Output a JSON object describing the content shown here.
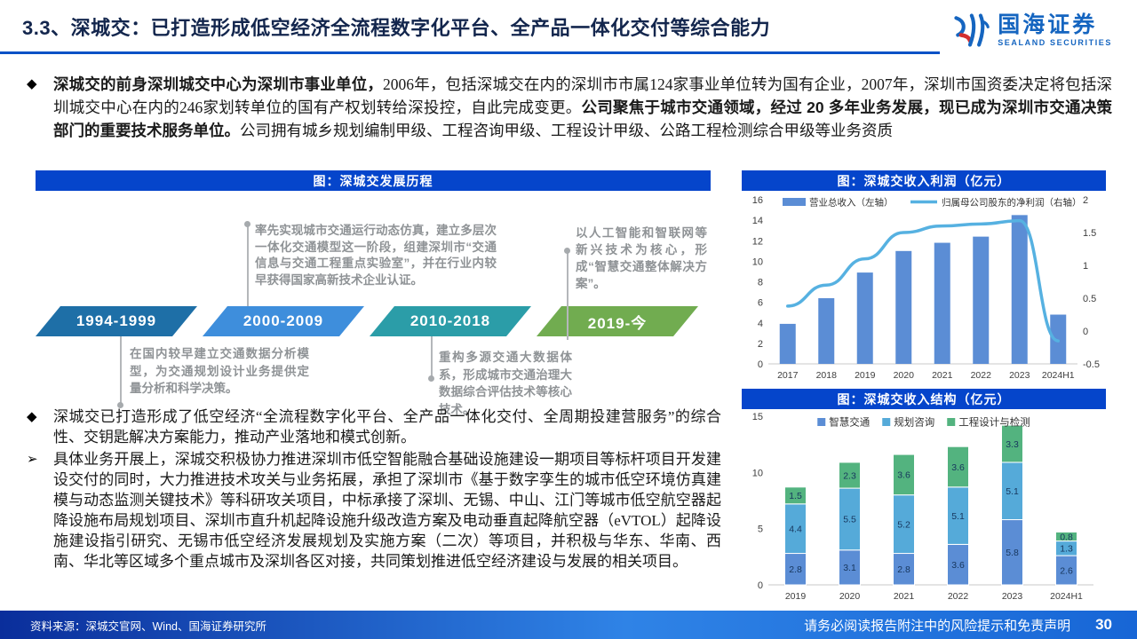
{
  "theme": {
    "panel_header_bg": "#0545CB",
    "title_rule": "#0551C6"
  },
  "header": {
    "title": "3.3、深城交：已打造形成低空经济全流程数字化平台、全产品一体化交付等综合能力",
    "logo": {
      "cn": "国海证券",
      "en": "SEALAND SECURITIES"
    }
  },
  "bullets": [
    {
      "marker": "◆",
      "segments": [
        {
          "text": "深城交的前身深圳城交中心为深圳市事业单位，",
          "bold": true
        },
        {
          "text": "2006年，包括深城交在内的深圳市市属124家事业单位转为国有企业，2007年，深圳市国资委决定将包括深圳城交中心在内的246家划转单位的国有产权划转给深投控，自此完成变更。",
          "bold": false
        },
        {
          "text": "公司聚焦于城市交通领域，经过 20 多年业务发展，现已成为深圳市交通决策部门的重要技术服务单位。",
          "bold": true
        },
        {
          "text": "公司拥有城乡规划编制甲级、工程咨询甲级、工程设计甲级、公路工程检测综合甲级等业务资质",
          "bold": false
        }
      ]
    },
    {
      "marker": "◆",
      "segments": [
        {
          "text": "深城交已打造形成了低空经济“全流程数字化平台、全产品一体化交付、全周期投建营服务”的综合性、交钥匙解决方案能力，推动产业落地和模式创新。",
          "bold": false
        }
      ]
    },
    {
      "marker": "➢",
      "segments": [
        {
          "text": "具体业务开展上，深城交积极协力推进深圳市低空智能融合基础设施建设一期项目等标杆项目开发建设交付的同时，大力推进技术攻关与业务拓展，承担了深圳市《基于数字孪生的城市低空环境仿真建模与动态监测关键技术》等科研攻关项目，中标承接了深圳、无锡、中山、江门等城市低空航空器起降设施布局规划项目、深圳市直升机起降设施升级改造方案及电动垂直起降航空器（eVTOL）起降设施建设指引研究、无锡市低空经济发展规划及实施方案（二次）等项目，并积极与华东、华南、西南、华北等区域多个重点城市及深圳各区对接，共同策划推进低空经济建设与发展的相关项目。",
          "bold": false
        }
      ]
    }
  ],
  "timeline": {
    "title": "图：深城交发展历程",
    "phases": [
      {
        "label": "1994-1999",
        "color": "#1E6FA7",
        "note": "在国内较早建立交通数据分析模型，为交通规划设计业务提供定量分析和科学决策。",
        "note_position": "below"
      },
      {
        "label": "2000-2009",
        "color": "#3E8EDC",
        "note": "率先实现城市交通运行动态仿真，建立多层次一体化交通模型这一阶段，组建深圳市“交通信息与交通工程重点实验室”，并在行业内较早获得国家高新技术企业认证。",
        "note_position": "above"
      },
      {
        "label": "2010-2018",
        "color": "#2B9DA8",
        "note": "重构多源交通大数据体系，形成城市交通治理大数据综合评估技术等核心技术。",
        "note_position": "below"
      },
      {
        "label": "2019-今",
        "color": "#71AC50",
        "note": "以人工智能和智联网等新兴技术为核心，形成“智慧交通整体解决方案”。",
        "note_position": "above"
      }
    ]
  },
  "chart_data": [
    {
      "type": "bar",
      "title": "图：深城交收入利润（亿元）",
      "categories": [
        "2017",
        "2018",
        "2019",
        "2020",
        "2021",
        "2022",
        "2023",
        "2024H1"
      ],
      "series": [
        {
          "name": "营业总收入（左轴）",
          "kind": "bar",
          "axis": "left",
          "color": "#5B8DD5",
          "values": [
            3.9,
            6.4,
            8.9,
            11.0,
            11.8,
            12.4,
            14.5,
            4.8
          ]
        },
        {
          "name": "归属母公司股东的净利润（右轴）",
          "kind": "line",
          "axis": "right",
          "color": "#56B1E1",
          "values": [
            0.38,
            0.7,
            1.1,
            1.5,
            1.6,
            1.63,
            1.68,
            -0.15
          ]
        }
      ],
      "left_axis": {
        "min": 0,
        "max": 16,
        "step": 2
      },
      "right_axis": {
        "min": -0.5,
        "max": 2,
        "step": 0.5
      },
      "grid": false,
      "legend_position": "top"
    },
    {
      "type": "bar",
      "subtype": "stacked",
      "title": "图：深城交收入结构（亿元）",
      "categories": [
        "2019",
        "2020",
        "2021",
        "2022",
        "2023",
        "2024H1"
      ],
      "series": [
        {
          "name": "智慧交通",
          "color": "#5B8DD5",
          "values": [
            2.8,
            3.1,
            2.8,
            3.6,
            5.8,
            2.6
          ]
        },
        {
          "name": "规划咨询",
          "color": "#55AAD9",
          "values": [
            4.4,
            5.5,
            5.2,
            5.1,
            5.1,
            1.3
          ]
        },
        {
          "name": "工程设计与检测",
          "color": "#53B37F",
          "values": [
            1.5,
            2.3,
            3.6,
            3.6,
            3.3,
            0.8
          ]
        }
      ],
      "y_axis": {
        "min": 0,
        "max": 15,
        "step": 5
      },
      "grid": false,
      "legend_position": "top",
      "data_labels": true
    }
  ],
  "footer": {
    "source": "资料来源：深城交官网、Wind、国海证券研究所",
    "disclaimer": "请务必阅读报告附注中的风险提示和免责声明",
    "page": "30"
  }
}
